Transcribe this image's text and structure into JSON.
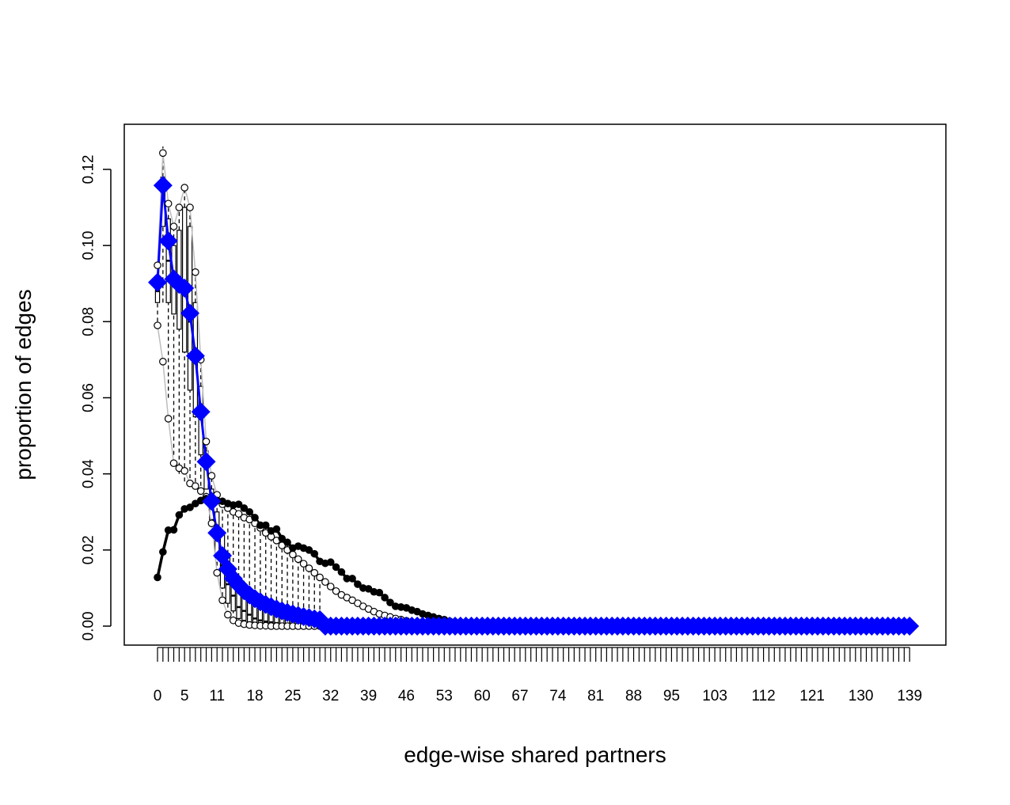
{
  "chart_data": {
    "type": "line",
    "xlabel": "edge-wise shared partners",
    "ylabel": "proportion of edges",
    "xlim": [
      0,
      140
    ],
    "ylim": [
      0,
      0.13
    ],
    "x_tick_labels": [
      "0",
      "5",
      "11",
      "18",
      "25",
      "32",
      "39",
      "46",
      "53",
      "60",
      "67",
      "74",
      "81",
      "88",
      "95",
      "103",
      "112",
      "121",
      "130",
      "139"
    ],
    "x_tick_values": [
      0,
      5,
      11,
      18,
      25,
      32,
      39,
      46,
      53,
      60,
      67,
      74,
      81,
      88,
      95,
      103,
      112,
      121,
      130,
      139
    ],
    "y_tick_labels": [
      "0.00",
      "0.02",
      "0.04",
      "0.06",
      "0.08",
      "0.10",
      "0.12"
    ],
    "y_tick_values": [
      0,
      0.02,
      0.04,
      0.06,
      0.08,
      0.1,
      0.12
    ],
    "colors": {
      "observed": "#0000ff",
      "simulated_mean": "#000000",
      "bounds": "#bdbdbd",
      "box": "#000000",
      "frame": "#000000"
    },
    "series": [
      {
        "key": "observed",
        "marker": "diamond",
        "x": [
          0,
          1,
          2,
          3,
          4,
          5,
          6,
          7,
          8,
          9,
          10,
          11,
          12,
          13,
          14,
          15,
          16,
          17,
          18,
          19,
          20,
          21,
          22,
          23,
          24,
          25,
          26,
          27,
          28,
          29,
          30
        ],
        "values": [
          0.0903,
          0.1158,
          0.1012,
          0.0912,
          0.0898,
          0.0888,
          0.0822,
          0.071,
          0.0563,
          0.0432,
          0.0328,
          0.0245,
          0.0185,
          0.015,
          0.0125,
          0.0108,
          0.0093,
          0.0082,
          0.0072,
          0.0064,
          0.0057,
          0.0051,
          0.0045,
          0.004,
          0.0036,
          0.0032,
          0.0028,
          0.0025,
          0.0022,
          0.0019,
          0.0017
        ],
        "tail_value": 0.0
      },
      {
        "key": "simulated_mean",
        "marker": "filled-circle",
        "x": [
          0,
          1,
          2,
          3,
          4,
          5,
          6,
          7,
          8,
          9,
          10,
          11,
          12,
          13,
          14,
          15,
          16,
          17,
          18,
          19,
          20,
          21,
          22,
          23,
          24,
          25,
          26,
          27,
          28,
          29,
          30,
          31,
          32,
          33,
          34,
          35,
          36,
          37,
          38,
          39,
          40,
          41,
          42,
          43,
          44,
          45,
          46,
          47,
          48,
          49,
          50,
          51,
          52,
          53,
          54,
          55,
          56,
          57,
          58,
          59,
          60
        ],
        "values": [
          0.0128,
          0.0195,
          0.0252,
          0.0253,
          0.0292,
          0.0308,
          0.0312,
          0.0322,
          0.033,
          0.0335,
          0.0333,
          0.033,
          0.0328,
          0.0322,
          0.0318,
          0.032,
          0.031,
          0.03,
          0.0285,
          0.0265,
          0.0265,
          0.025,
          0.0255,
          0.023,
          0.022,
          0.0205,
          0.021,
          0.0205,
          0.02,
          0.019,
          0.017,
          0.0165,
          0.0168,
          0.0155,
          0.0142,
          0.0125,
          0.0125,
          0.011,
          0.01,
          0.0098,
          0.009,
          0.0088,
          0.0075,
          0.0062,
          0.0052,
          0.005,
          0.0048,
          0.0042,
          0.0038,
          0.0032,
          0.0028,
          0.0024,
          0.002,
          0.0017,
          0.0013,
          0.001,
          0.0008,
          0.0006,
          0.0004,
          0.0002,
          0.0001
        ],
        "tail_value": 0.0
      },
      {
        "key": "upper_bound",
        "marker": "open-circle",
        "x": [
          0,
          1,
          2,
          3,
          4,
          5,
          6,
          7,
          8,
          9,
          10,
          11,
          12,
          13,
          14,
          15,
          16,
          17,
          18,
          19,
          20,
          21,
          22,
          23,
          24,
          25,
          26,
          27,
          28,
          29,
          30,
          31,
          32,
          33,
          34,
          35,
          36,
          37,
          38,
          39,
          40,
          41,
          42,
          43,
          44,
          45,
          46,
          47,
          48,
          49,
          50,
          51,
          52,
          53,
          54,
          55
        ],
        "values": [
          0.0948,
          0.1243,
          0.111,
          0.105,
          0.11,
          0.1152,
          0.11,
          0.093,
          0.07,
          0.0485,
          0.0395,
          0.0345,
          0.032,
          0.031,
          0.03,
          0.0295,
          0.0285,
          0.028,
          0.027,
          0.0258,
          0.0245,
          0.0235,
          0.0225,
          0.0212,
          0.02,
          0.0188,
          0.0176,
          0.0164,
          0.0152,
          0.014,
          0.0128,
          0.0116,
          0.0104,
          0.0092,
          0.0082,
          0.0075,
          0.0068,
          0.006,
          0.0052,
          0.0045,
          0.0038,
          0.0032,
          0.0028,
          0.0024,
          0.002,
          0.0017,
          0.0014,
          0.0011,
          0.0009,
          0.0007,
          0.0005,
          0.0004,
          0.0003,
          0.0002,
          0.0001,
          0.0
        ],
        "tail_value": 0.0
      },
      {
        "key": "lower_bound",
        "marker": "open-circle",
        "x": [
          0,
          1,
          2,
          3,
          4,
          5,
          6,
          7,
          8,
          9,
          10,
          11,
          12,
          13,
          14,
          15,
          16,
          17,
          18,
          19,
          20,
          21,
          22,
          23,
          24,
          25,
          26,
          27,
          28,
          29,
          30
        ],
        "values": [
          0.079,
          0.0695,
          0.0545,
          0.0428,
          0.0415,
          0.0408,
          0.0375,
          0.0368,
          0.0355,
          0.034,
          0.027,
          0.014,
          0.0068,
          0.003,
          0.0015,
          0.0008,
          0.0005,
          0.0003,
          0.0002,
          0.0001,
          0.0001,
          0.0,
          0.0,
          0.0,
          0.0,
          0.0,
          0.0,
          0.0,
          0.0,
          0.0,
          0.0
        ],
        "tail_value": 0.0
      }
    ],
    "boxplots": [
      {
        "x": 0,
        "min": 0.08,
        "q1": 0.085,
        "median": 0.088,
        "q3": 0.092,
        "max": 0.094
      },
      {
        "x": 1,
        "min": 0.085,
        "q1": 0.105,
        "median": 0.112,
        "q3": 0.118,
        "max": 0.126
      },
      {
        "x": 2,
        "min": 0.06,
        "q1": 0.085,
        "median": 0.096,
        "q3": 0.107,
        "max": 0.11
      },
      {
        "x": 3,
        "min": 0.045,
        "q1": 0.082,
        "median": 0.093,
        "q3": 0.1,
        "max": 0.104
      },
      {
        "x": 4,
        "min": 0.04,
        "q1": 0.078,
        "median": 0.09,
        "q3": 0.104,
        "max": 0.11
      },
      {
        "x": 5,
        "min": 0.038,
        "q1": 0.072,
        "median": 0.087,
        "q3": 0.11,
        "max": 0.115
      },
      {
        "x": 6,
        "min": 0.037,
        "q1": 0.062,
        "median": 0.08,
        "q3": 0.105,
        "max": 0.11
      },
      {
        "x": 7,
        "min": 0.036,
        "q1": 0.055,
        "median": 0.07,
        "q3": 0.085,
        "max": 0.092
      },
      {
        "x": 8,
        "min": 0.035,
        "q1": 0.045,
        "median": 0.055,
        "q3": 0.063,
        "max": 0.069
      },
      {
        "x": 9,
        "min": 0.034,
        "q1": 0.036,
        "median": 0.042,
        "q3": 0.046,
        "max": 0.048
      },
      {
        "x": 10,
        "min": 0.026,
        "q1": 0.028,
        "median": 0.032,
        "q3": 0.036,
        "max": 0.039
      },
      {
        "x": 11,
        "min": 0.014,
        "q1": 0.018,
        "median": 0.024,
        "q3": 0.03,
        "max": 0.034
      },
      {
        "x": 12,
        "min": 0.006,
        "q1": 0.01,
        "median": 0.016,
        "q3": 0.024,
        "max": 0.032
      },
      {
        "x": 13,
        "min": 0.003,
        "q1": 0.006,
        "median": 0.011,
        "q3": 0.019,
        "max": 0.031
      },
      {
        "x": 14,
        "min": 0.0015,
        "q1": 0.004,
        "median": 0.008,
        "q3": 0.015,
        "max": 0.03
      },
      {
        "x": 15,
        "min": 0.0008,
        "q1": 0.002,
        "median": 0.005,
        "q3": 0.011,
        "max": 0.0295
      },
      {
        "x": 16,
        "min": 0.0005,
        "q1": 0.0015,
        "median": 0.004,
        "q3": 0.009,
        "max": 0.0285
      },
      {
        "x": 17,
        "min": 0.0003,
        "q1": 0.001,
        "median": 0.003,
        "q3": 0.007,
        "max": 0.028
      },
      {
        "x": 18,
        "min": 0.0002,
        "q1": 0.0008,
        "median": 0.002,
        "q3": 0.006,
        "max": 0.027
      },
      {
        "x": 19,
        "min": 0.0001,
        "q1": 0.0006,
        "median": 0.0015,
        "q3": 0.005,
        "max": 0.0258
      },
      {
        "x": 20,
        "min": 0.0001,
        "q1": 0.0004,
        "median": 0.0012,
        "q3": 0.004,
        "max": 0.0245
      },
      {
        "x": 21,
        "min": 0,
        "q1": 0.0003,
        "median": 0.001,
        "q3": 0.0035,
        "max": 0.0235
      },
      {
        "x": 22,
        "min": 0,
        "q1": 0.0002,
        "median": 0.0008,
        "q3": 0.003,
        "max": 0.0225
      },
      {
        "x": 23,
        "min": 0,
        "q1": 0.0002,
        "median": 0.0006,
        "q3": 0.0025,
        "max": 0.0212
      },
      {
        "x": 24,
        "min": 0,
        "q1": 0.0001,
        "median": 0.0005,
        "q3": 0.002,
        "max": 0.02
      },
      {
        "x": 25,
        "min": 0,
        "q1": 0.0001,
        "median": 0.0004,
        "q3": 0.0018,
        "max": 0.0188
      },
      {
        "x": 26,
        "min": 0,
        "q1": 0.0001,
        "median": 0.0003,
        "q3": 0.0015,
        "max": 0.0176
      },
      {
        "x": 27,
        "min": 0,
        "q1": 0,
        "median": 0.0002,
        "q3": 0.0012,
        "max": 0.0164
      },
      {
        "x": 28,
        "min": 0,
        "q1": 0,
        "median": 0.0002,
        "q3": 0.001,
        "max": 0.0152
      },
      {
        "x": 29,
        "min": 0,
        "q1": 0,
        "median": 0.0001,
        "q3": 0.0008,
        "max": 0.014
      },
      {
        "x": 30,
        "min": 0,
        "q1": 0,
        "median": 0.0001,
        "q3": 0.0006,
        "max": 0.0128
      }
    ],
    "grid": false,
    "legend": "none"
  }
}
